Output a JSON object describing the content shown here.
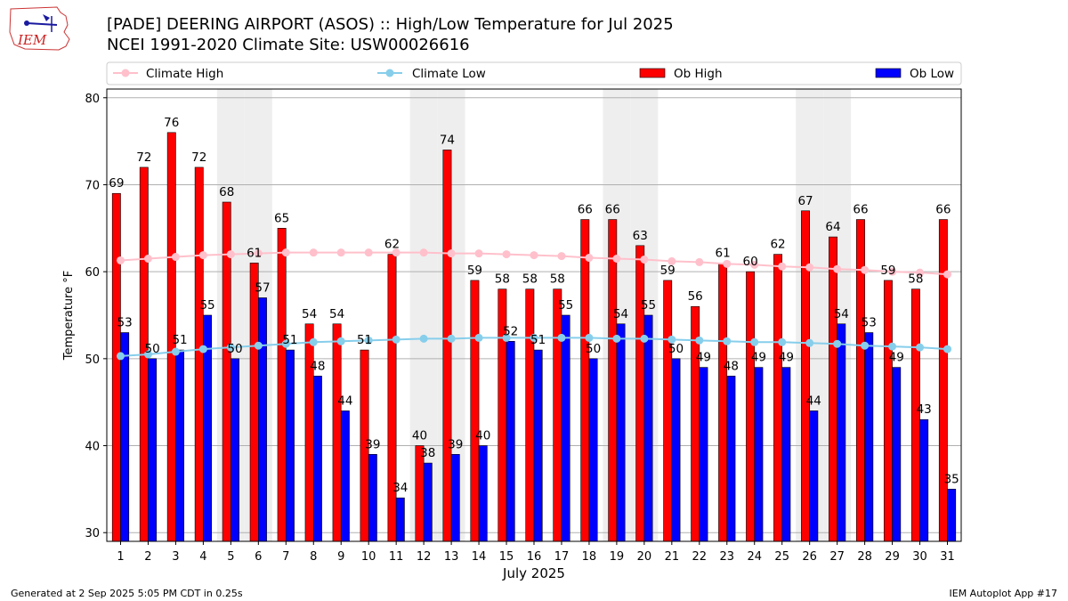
{
  "title_line1": "[PADE] DEERING AIRPORT (ASOS) :: High/Low Temperature for Jul 2025",
  "title_line2": "NCEI 1991-2020 Climate Site: USW00026616",
  "logo_text": "IEM",
  "footer_left": "Generated at 2 Sep 2025 5:05 PM CDT in 0.25s",
  "footer_right": "IEM Autoplot App #17",
  "colors": {
    "ob_high": "#ff0000",
    "ob_low": "#0000ff",
    "climate_high": "#ffc0cb",
    "climate_low": "#87ceeb",
    "weekend": "#eeeeee"
  },
  "chart_data": {
    "type": "bar",
    "xlabel": "July 2025",
    "ylabel": "Temperature °F",
    "ylim": [
      29,
      81
    ],
    "yticks": [
      30,
      40,
      50,
      60,
      70,
      80
    ],
    "grid": true,
    "legend_position": "top",
    "legend": [
      "Climate High",
      "Climate Low",
      "Ob High",
      "Ob Low"
    ],
    "categories": [
      "1",
      "2",
      "3",
      "4",
      "5",
      "6",
      "7",
      "8",
      "9",
      "10",
      "11",
      "12",
      "13",
      "14",
      "15",
      "16",
      "17",
      "18",
      "19",
      "20",
      "21",
      "22",
      "23",
      "24",
      "25",
      "26",
      "27",
      "28",
      "29",
      "30",
      "31"
    ],
    "shaded_days": [
      5,
      6,
      12,
      13,
      19,
      20,
      26,
      27
    ],
    "series": [
      {
        "name": "Ob High",
        "kind": "bar",
        "values": [
          69,
          72,
          76,
          72,
          68,
          61,
          65,
          54,
          54,
          51,
          62,
          40,
          74,
          59,
          58,
          58,
          58,
          66,
          66,
          63,
          59,
          56,
          61,
          60,
          62,
          67,
          64,
          66,
          59,
          58,
          66
        ]
      },
      {
        "name": "Ob Low",
        "kind": "bar",
        "values": [
          53,
          50,
          51,
          55,
          50,
          57,
          51,
          48,
          44,
          39,
          34,
          38,
          39,
          40,
          52,
          51,
          55,
          50,
          54,
          55,
          50,
          49,
          48,
          49,
          49,
          44,
          54,
          53,
          49,
          43,
          35
        ]
      },
      {
        "name": "Climate High",
        "kind": "line",
        "values": [
          61.3,
          61.5,
          61.7,
          61.9,
          62.0,
          62.1,
          62.2,
          62.2,
          62.2,
          62.2,
          62.2,
          62.2,
          62.1,
          62.1,
          62.0,
          61.9,
          61.8,
          61.6,
          61.5,
          61.4,
          61.2,
          61.1,
          60.9,
          60.8,
          60.6,
          60.5,
          60.3,
          60.2,
          60.0,
          59.9,
          59.7
        ]
      },
      {
        "name": "Climate Low",
        "kind": "line",
        "values": [
          50.3,
          50.5,
          50.8,
          51.1,
          51.3,
          51.5,
          51.7,
          51.9,
          52.0,
          52.1,
          52.2,
          52.3,
          52.3,
          52.4,
          52.4,
          52.4,
          52.4,
          52.4,
          52.3,
          52.3,
          52.2,
          52.1,
          52.0,
          51.9,
          51.9,
          51.8,
          51.7,
          51.5,
          51.4,
          51.3,
          51.1
        ]
      }
    ]
  }
}
